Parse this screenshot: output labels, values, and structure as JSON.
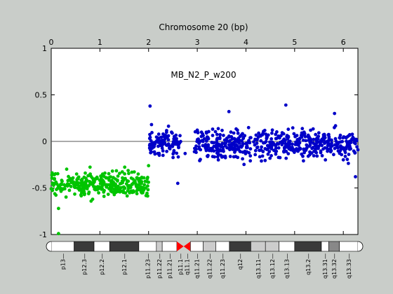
{
  "chart_data": {
    "type": "scatter",
    "title": "Chromosome 20 (bp)",
    "annotation": "MB_N2_P_w200",
    "x_axis": {
      "position": "top",
      "range": [
        0,
        6.3
      ],
      "ticks": [
        0,
        1,
        2,
        3,
        4,
        5,
        6
      ]
    },
    "y_axis": {
      "range": [
        -1,
        1
      ],
      "ticks": [
        1,
        0.5,
        0,
        -0.5,
        -1
      ]
    },
    "reference_line_y": 0,
    "series": [
      {
        "color": "#00c400",
        "segments": [
          {
            "x_start": 0.0,
            "x_end": 2.0,
            "y_center": -0.46,
            "y_spread": 0.12,
            "outliers": [
              {
                "x": 0.15,
                "y": -0.99
              },
              {
                "x": 0.15,
                "y": -0.72
              }
            ]
          }
        ]
      },
      {
        "color": "#0000c8",
        "segments": [
          {
            "x_start": 2.02,
            "x_end": 2.66,
            "y_center": -0.02,
            "y_spread": 0.14,
            "outliers": [
              {
                "x": 2.03,
                "y": 0.38
              },
              {
                "x": 2.6,
                "y": -0.45
              },
              {
                "x": 2.75,
                "y": -0.13
              }
            ]
          },
          {
            "x_start": 2.93,
            "x_end": 6.3,
            "y_center": -0.03,
            "y_spread": 0.14,
            "outliers": [
              {
                "x": 3.65,
                "y": 0.32
              },
              {
                "x": 4.82,
                "y": 0.39
              },
              {
                "x": 5.82,
                "y": 0.3
              },
              {
                "x": 6.25,
                "y": -0.38
              }
            ]
          }
        ]
      }
    ]
  },
  "ideogram": {
    "bands": [
      {
        "name": "p13",
        "start": 0.0,
        "end": 0.47,
        "stain": "white"
      },
      {
        "name": "p12.3",
        "start": 0.47,
        "end": 0.88,
        "stain": "dark"
      },
      {
        "name": "p12.2",
        "start": 0.88,
        "end": 1.2,
        "stain": "white"
      },
      {
        "name": "p12.1",
        "start": 1.2,
        "end": 1.8,
        "stain": "dark"
      },
      {
        "name": "p11.23",
        "start": 1.8,
        "end": 2.16,
        "stain": "white"
      },
      {
        "name": "p11.22",
        "start": 2.16,
        "end": 2.28,
        "stain": "light"
      },
      {
        "name": "p11.21",
        "start": 2.28,
        "end": 2.58,
        "stain": "white"
      },
      {
        "name": "p11.1",
        "start": 2.58,
        "end": 2.72,
        "stain": "centromere"
      },
      {
        "name": "q11.1",
        "start": 2.72,
        "end": 2.86,
        "stain": "centromere"
      },
      {
        "name": "q11.21",
        "start": 2.86,
        "end": 3.12,
        "stain": "white"
      },
      {
        "name": "q11.22",
        "start": 3.12,
        "end": 3.38,
        "stain": "light"
      },
      {
        "name": "q11.23",
        "start": 3.38,
        "end": 3.66,
        "stain": "white"
      },
      {
        "name": "q12",
        "start": 3.66,
        "end": 4.1,
        "stain": "dark"
      },
      {
        "name": "q13.11",
        "start": 4.1,
        "end": 4.4,
        "stain": "light"
      },
      {
        "name": "q13.12",
        "start": 4.4,
        "end": 4.68,
        "stain": "light"
      },
      {
        "name": "q13.13",
        "start": 4.68,
        "end": 5.0,
        "stain": "white"
      },
      {
        "name": "q13.2",
        "start": 5.0,
        "end": 5.55,
        "stain": "dark"
      },
      {
        "name": "q13.31",
        "start": 5.55,
        "end": 5.7,
        "stain": "white"
      },
      {
        "name": "q13.32",
        "start": 5.7,
        "end": 5.92,
        "stain": "mid"
      },
      {
        "name": "q13.33",
        "start": 5.92,
        "end": 6.3,
        "stain": "white"
      }
    ]
  },
  "colors": {
    "background": "#c9cdc9",
    "plot_area": "#ffffff",
    "band_dark": "#3a3a3a",
    "band_mid": "#888888",
    "band_light": "#cccccc",
    "centromere": "#ff0000"
  }
}
